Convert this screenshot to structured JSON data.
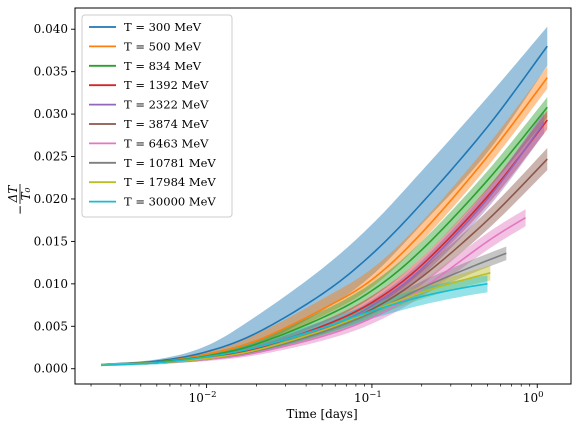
{
  "chart_data": {
    "type": "line",
    "xscale": "log",
    "xlabel": "Time [days]",
    "ylabel": "-ΔT / T₀",
    "xlim": [
      0.0016,
      1.6
    ],
    "ylim": [
      -0.0018,
      0.0425
    ],
    "xticks": [
      {
        "value": 0.01,
        "label": "10",
        "exp": "−2"
      },
      {
        "value": 0.1,
        "label": "10",
        "exp": "−1"
      },
      {
        "value": 1,
        "label": "10",
        "exp": "0"
      }
    ],
    "yticks": [
      {
        "value": 0.0,
        "label": "0.000"
      },
      {
        "value": 0.005,
        "label": "0.005"
      },
      {
        "value": 0.01,
        "label": "0.010"
      },
      {
        "value": 0.015,
        "label": "0.015"
      },
      {
        "value": 0.02,
        "label": "0.020"
      },
      {
        "value": 0.025,
        "label": "0.025"
      },
      {
        "value": 0.03,
        "label": "0.030"
      },
      {
        "value": 0.035,
        "label": "0.035"
      },
      {
        "value": 0.04,
        "label": "0.040"
      }
    ],
    "legend_position": "top-left",
    "band_opacity": 0.45,
    "series": [
      {
        "name": "T = 300 MeV",
        "color": "#1f77b4",
        "x": [
          0.0023,
          0.005,
          0.01,
          0.02,
          0.05,
          0.1,
          0.2,
          0.5,
          1.15
        ],
        "y": [
          0.0005,
          0.0009,
          0.002,
          0.0042,
          0.0088,
          0.0135,
          0.0195,
          0.0285,
          0.038
        ],
        "lower": [
          0.0004,
          0.0007,
          0.0015,
          0.0028,
          0.0068,
          0.011,
          0.017,
          0.0255,
          0.0357
        ],
        "upper": [
          0.0006,
          0.0011,
          0.0027,
          0.0062,
          0.0118,
          0.017,
          0.0233,
          0.032,
          0.0403
        ]
      },
      {
        "name": "T = 500 MeV",
        "color": "#ff7f0e",
        "x": [
          0.0023,
          0.005,
          0.01,
          0.02,
          0.05,
          0.1,
          0.2,
          0.5,
          1.15
        ],
        "y": [
          0.0005,
          0.0008,
          0.0017,
          0.0033,
          0.007,
          0.0105,
          0.016,
          0.025,
          0.0343
        ],
        "lower": [
          0.0004,
          0.0007,
          0.0014,
          0.0028,
          0.0062,
          0.0096,
          0.015,
          0.0238,
          0.033
        ],
        "upper": [
          0.0006,
          0.001,
          0.0021,
          0.0041,
          0.0082,
          0.0118,
          0.0173,
          0.0263,
          0.0356
        ]
      },
      {
        "name": "T = 834 MeV",
        "color": "#2ca02c",
        "x": [
          0.0023,
          0.005,
          0.01,
          0.02,
          0.05,
          0.1,
          0.2,
          0.5,
          1.15
        ],
        "y": [
          0.0005,
          0.0008,
          0.0015,
          0.0029,
          0.006,
          0.0092,
          0.014,
          0.0222,
          0.0308
        ],
        "lower": [
          0.0004,
          0.0007,
          0.0013,
          0.0025,
          0.0053,
          0.0084,
          0.0131,
          0.0211,
          0.0296
        ],
        "upper": [
          0.0006,
          0.0009,
          0.0018,
          0.0034,
          0.0068,
          0.0101,
          0.015,
          0.0233,
          0.032
        ]
      },
      {
        "name": "T = 1392 MeV",
        "color": "#d62728",
        "x": [
          0.0023,
          0.005,
          0.01,
          0.02,
          0.05,
          0.1,
          0.2,
          0.5,
          1.15
        ],
        "y": [
          0.0005,
          0.0007,
          0.0013,
          0.0024,
          0.005,
          0.0078,
          0.0122,
          0.0203,
          0.0293
        ],
        "lower": [
          0.0004,
          0.0006,
          0.0011,
          0.0021,
          0.0045,
          0.0071,
          0.0114,
          0.0193,
          0.0282
        ],
        "upper": [
          0.0006,
          0.0008,
          0.0015,
          0.0028,
          0.0056,
          0.0086,
          0.0131,
          0.0213,
          0.0304
        ]
      },
      {
        "name": "T = 2322 MeV",
        "color": "#9467bd",
        "x": [
          0.0023,
          0.005,
          0.01,
          0.02,
          0.05,
          0.1,
          0.2,
          0.5,
          1.1
        ],
        "y": [
          0.0005,
          0.0007,
          0.0012,
          0.0022,
          0.0046,
          0.0074,
          0.0118,
          0.02,
          0.029
        ],
        "lower": [
          0.0004,
          0.0006,
          0.001,
          0.0019,
          0.0041,
          0.0067,
          0.0109,
          0.0189,
          0.0277
        ],
        "upper": [
          0.0006,
          0.0008,
          0.0014,
          0.0026,
          0.0052,
          0.0081,
          0.0127,
          0.0211,
          0.0303
        ]
      },
      {
        "name": "T = 3874 MeV",
        "color": "#8c564b",
        "x": [
          0.0023,
          0.005,
          0.01,
          0.02,
          0.05,
          0.1,
          0.2,
          0.5,
          1.15
        ],
        "y": [
          0.0005,
          0.0007,
          0.0012,
          0.0022,
          0.0045,
          0.007,
          0.0108,
          0.0175,
          0.0247
        ],
        "lower": [
          0.0004,
          0.0006,
          0.001,
          0.0019,
          0.004,
          0.0063,
          0.0099,
          0.0164,
          0.0234
        ],
        "upper": [
          0.0006,
          0.0008,
          0.0014,
          0.0026,
          0.0051,
          0.0077,
          0.0117,
          0.0186,
          0.026
        ]
      },
      {
        "name": "T = 6463 MeV",
        "color": "#e377c2",
        "x": [
          0.0023,
          0.005,
          0.01,
          0.02,
          0.05,
          0.1,
          0.2,
          0.5,
          0.85
        ],
        "y": [
          0.0005,
          0.0007,
          0.0011,
          0.0019,
          0.0038,
          0.006,
          0.0094,
          0.015,
          0.0178
        ],
        "lower": [
          0.0004,
          0.0006,
          0.0009,
          0.0016,
          0.0033,
          0.0053,
          0.0085,
          0.014,
          0.0168
        ],
        "upper": [
          0.0006,
          0.0008,
          0.0013,
          0.0022,
          0.0043,
          0.0067,
          0.0103,
          0.016,
          0.0188
        ]
      },
      {
        "name": "T = 10781 MeV",
        "color": "#7f7f7f",
        "x": [
          0.0023,
          0.005,
          0.01,
          0.02,
          0.05,
          0.1,
          0.2,
          0.4,
          0.65
        ],
        "y": [
          0.0005,
          0.0007,
          0.0012,
          0.0021,
          0.0043,
          0.0066,
          0.0095,
          0.012,
          0.0136
        ],
        "lower": [
          0.0004,
          0.0006,
          0.001,
          0.0018,
          0.0038,
          0.0059,
          0.0087,
          0.0112,
          0.0128
        ],
        "upper": [
          0.0006,
          0.0008,
          0.0014,
          0.0024,
          0.0048,
          0.0073,
          0.0103,
          0.0128,
          0.0144
        ]
      },
      {
        "name": "T = 17984 MeV",
        "color": "#bcbd22",
        "x": [
          0.0023,
          0.005,
          0.01,
          0.02,
          0.05,
          0.1,
          0.2,
          0.35,
          0.52
        ],
        "y": [
          0.0005,
          0.0007,
          0.0012,
          0.0022,
          0.0045,
          0.0068,
          0.009,
          0.0104,
          0.0113
        ],
        "lower": [
          0.0004,
          0.0006,
          0.001,
          0.0019,
          0.004,
          0.0061,
          0.0082,
          0.0096,
          0.0104
        ],
        "upper": [
          0.0006,
          0.0008,
          0.0014,
          0.0025,
          0.005,
          0.0075,
          0.0098,
          0.0112,
          0.0122
        ]
      },
      {
        "name": "T = 30000 MeV",
        "color": "#17becf",
        "x": [
          0.0023,
          0.005,
          0.01,
          0.02,
          0.05,
          0.1,
          0.2,
          0.35,
          0.5
        ],
        "y": [
          0.0004,
          0.0007,
          0.0014,
          0.0025,
          0.0048,
          0.0068,
          0.0085,
          0.0095,
          0.01
        ],
        "lower": [
          0.0003,
          0.0005,
          0.001,
          0.0019,
          0.004,
          0.0059,
          0.0075,
          0.0085,
          0.009
        ],
        "upper": [
          0.0005,
          0.0009,
          0.0018,
          0.0031,
          0.0056,
          0.0077,
          0.0095,
          0.0105,
          0.011
        ]
      }
    ]
  }
}
